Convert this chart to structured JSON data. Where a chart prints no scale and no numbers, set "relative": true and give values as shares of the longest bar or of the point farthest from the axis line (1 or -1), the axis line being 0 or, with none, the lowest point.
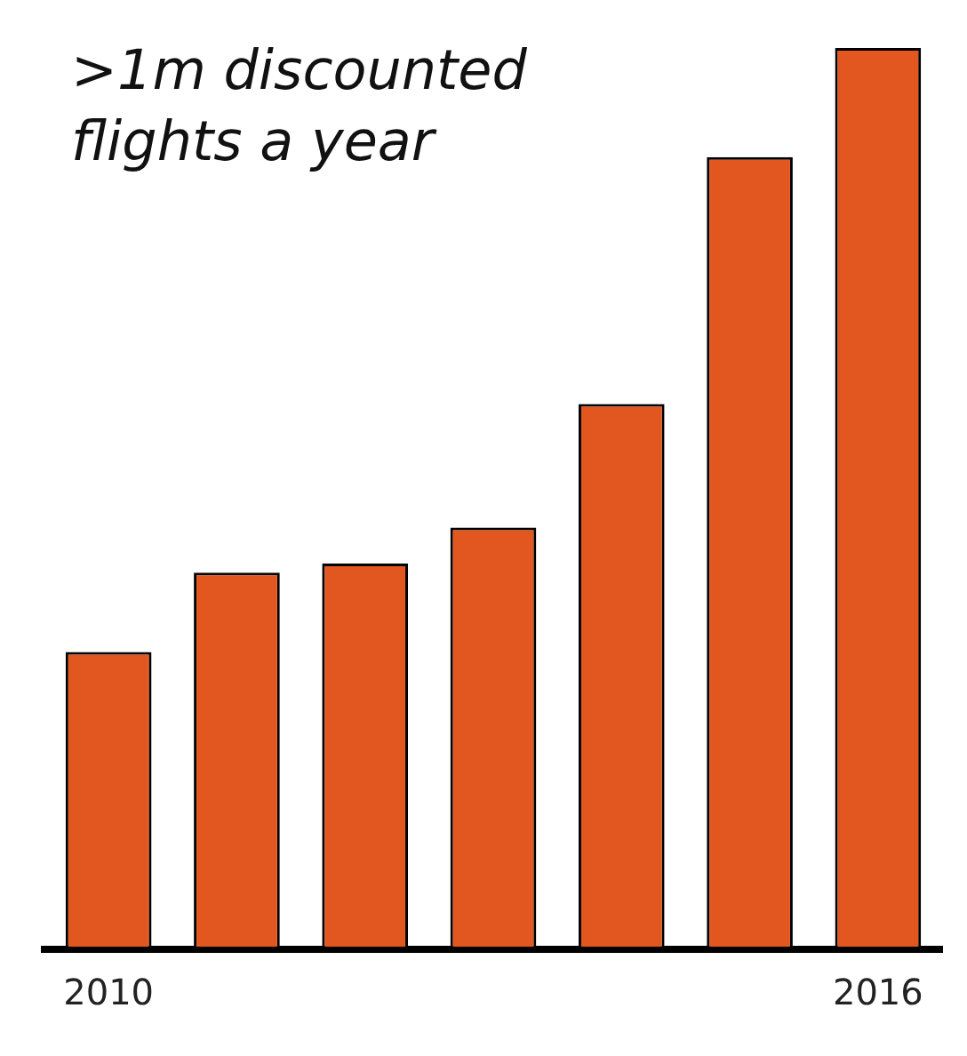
{
  "chart_data": {
    "type": "bar",
    "title": ">1m discounted flights a year",
    "relative": true,
    "categories": [
      "2010",
      null,
      null,
      null,
      null,
      null,
      "2016"
    ],
    "values": [
      0.33,
      0.418,
      0.428,
      0.468,
      0.605,
      0.879,
      1
    ],
    "color": "#e2561f",
    "grid": false,
    "legend": false
  }
}
